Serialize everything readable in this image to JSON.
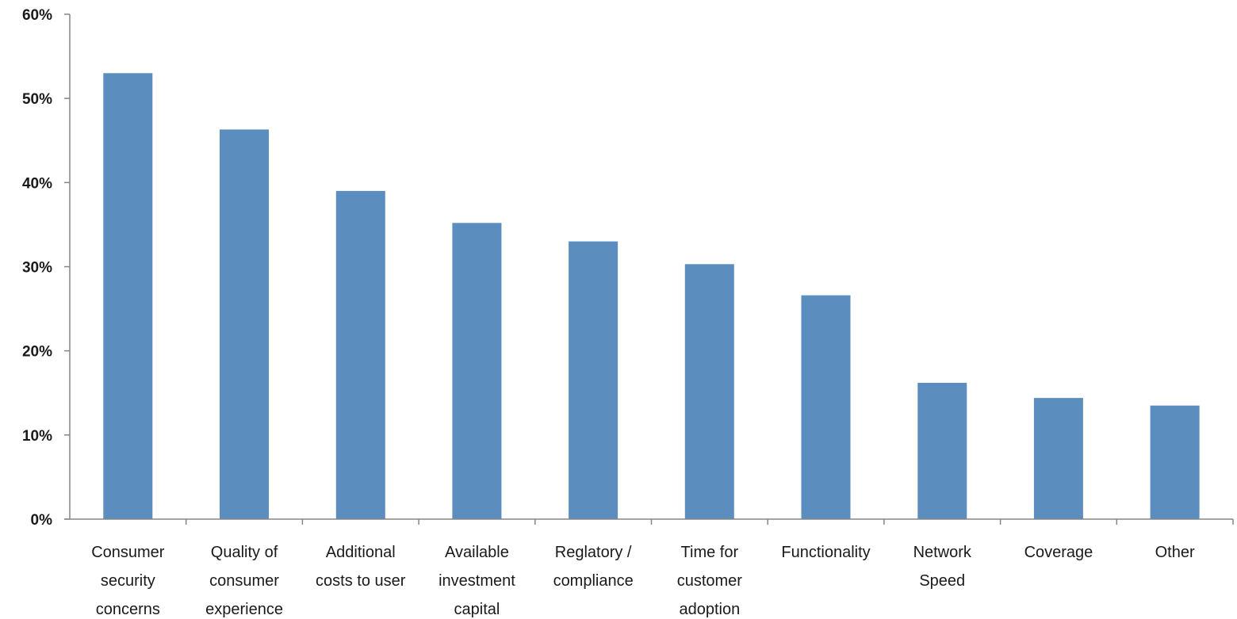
{
  "chart_data": {
    "type": "bar",
    "title": "",
    "xlabel": "",
    "ylabel": "",
    "ylim": [
      0,
      60
    ],
    "yticks": [
      "0%",
      "10%",
      "20%",
      "30%",
      "40%",
      "50%",
      "60%"
    ],
    "grid": false,
    "legend": "none",
    "categories": [
      [
        "Consumer",
        "security",
        "concerns"
      ],
      [
        "Quality of",
        "consumer",
        "experience"
      ],
      [
        "Additional",
        "costs to user"
      ],
      [
        "Available",
        "investment",
        "capital"
      ],
      [
        "Reglatory /",
        "compliance"
      ],
      [
        "Time for",
        "customer",
        "adoption"
      ],
      [
        "Functionality"
      ],
      [
        "Network",
        "Speed"
      ],
      [
        "Coverage"
      ],
      [
        "Other"
      ]
    ],
    "values": [
      53,
      46.3,
      39,
      35.2,
      33,
      30.3,
      26.6,
      16.2,
      14.4,
      13.5
    ],
    "bar_color": "#5B8DBF",
    "axis_color": "#868686"
  }
}
